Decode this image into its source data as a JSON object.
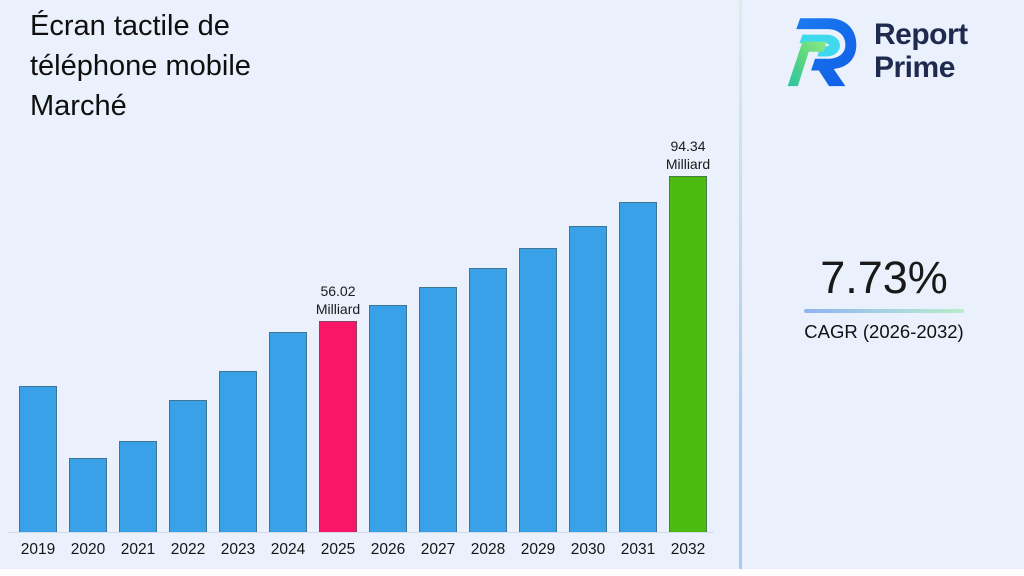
{
  "header": {
    "title_lines": [
      "Écran tactile de",
      "téléphone mobile",
      "Marché"
    ]
  },
  "logo": {
    "name": "Report Prime",
    "line1": "Report",
    "line2": "Prime",
    "colors": {
      "navy": "#1e2b4f",
      "blue": "#1065e8",
      "cyan": "#3fd9ee",
      "green_light": "#90ea84",
      "green_teal": "#2cc3a6"
    }
  },
  "stats": {
    "cagr_value": "7.73%",
    "cagr_label": "CAGR (2026-2032)"
  },
  "chart_data": {
    "type": "bar",
    "title": "Écran tactile de téléphone mobile Marché",
    "unit": "Milliard",
    "categories": [
      "2019",
      "2020",
      "2021",
      "2022",
      "2023",
      "2024",
      "2025",
      "2026",
      "2027",
      "2028",
      "2029",
      "2030",
      "2031",
      "2032"
    ],
    "values": [
      39.0,
      19.9,
      24.4,
      35.1,
      43.0,
      53.2,
      56.02,
      60.34,
      65.0,
      70.03,
      75.44,
      81.27,
      87.55,
      94.34
    ],
    "labeled_points": [
      {
        "year": "2025",
        "value": "56.02",
        "unit": "Milliard"
      },
      {
        "year": "2032",
        "value": "94.34",
        "unit": "Milliard"
      }
    ],
    "ylim": [
      0,
      100
    ],
    "grid": false,
    "legend": false,
    "bar_colors": {
      "default": "#39a1e8",
      "current": "#fb1566",
      "final": "#4cbb11"
    },
    "highlights": {
      "2025": "current",
      "2032": "final"
    }
  }
}
